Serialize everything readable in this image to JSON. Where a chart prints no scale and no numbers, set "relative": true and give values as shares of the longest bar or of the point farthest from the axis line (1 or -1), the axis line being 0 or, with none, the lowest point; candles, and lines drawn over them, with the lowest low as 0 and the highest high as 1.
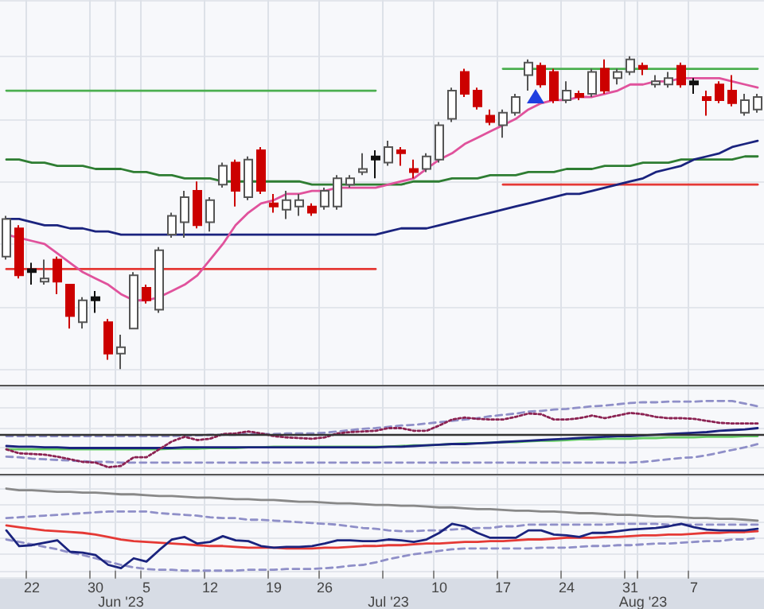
{
  "chart_data": [
    {
      "type": "candlestick",
      "relative": true,
      "grid": true,
      "tick_labels": false,
      "marker": "none",
      "categories": [
        null,
        null,
        null,
        null,
        null,
        null,
        null,
        null,
        null,
        null,
        null,
        null,
        null,
        null,
        null,
        null,
        null,
        null,
        null,
        null,
        null,
        null,
        null,
        null,
        null,
        null,
        null,
        null,
        null,
        null,
        null,
        null,
        null,
        null,
        null,
        null,
        null,
        null,
        null,
        null,
        null,
        null,
        null,
        null,
        null,
        null,
        null,
        null,
        null,
        null,
        null,
        null,
        null,
        null,
        null,
        null,
        null,
        null,
        null,
        null
      ],
      "ohlc": [
        [
          0.36,
          0.49,
          0.35,
          0.48
        ],
        [
          0.45,
          0.46,
          0.29,
          0.3
        ],
        [
          0.32,
          0.34,
          0.27,
          0.31
        ],
        [
          0.28,
          0.35,
          0.27,
          0.29
        ],
        [
          0.35,
          0.36,
          0.24,
          0.28
        ],
        [
          0.27,
          0.27,
          0.13,
          0.17
        ],
        [
          0.15,
          0.23,
          0.13,
          0.22
        ],
        [
          0.23,
          0.25,
          0.18,
          0.22
        ],
        [
          0.15,
          0.16,
          0.03,
          0.05
        ],
        [
          0.05,
          0.11,
          0,
          0.07
        ],
        [
          0.13,
          0.31,
          0.13,
          0.3
        ],
        [
          0.26,
          0.27,
          0.21,
          0.22
        ],
        [
          0.19,
          0.39,
          0.18,
          0.38
        ],
        [
          0.43,
          0.5,
          0.42,
          0.49
        ],
        [
          0.47,
          0.57,
          0.42,
          0.55
        ],
        [
          0.57,
          0.6,
          0.45,
          0.46
        ],
        [
          0.47,
          0.55,
          0.44,
          0.54
        ],
        [
          0.59,
          0.66,
          0.58,
          0.65
        ],
        [
          0.66,
          0.67,
          0.52,
          0.57
        ],
        [
          0.55,
          0.68,
          0.54,
          0.67
        ],
        [
          0.7,
          0.71,
          0.56,
          0.57
        ],
        [
          0.53,
          0.56,
          0.5,
          0.52
        ],
        [
          0.51,
          0.57,
          0.48,
          0.54
        ],
        [
          0.52,
          0.56,
          0.49,
          0.54
        ],
        [
          0.52,
          0.53,
          0.49,
          0.5
        ],
        [
          0.52,
          0.58,
          0.51,
          0.57
        ],
        [
          0.52,
          0.62,
          0.51,
          0.61
        ],
        [
          0.59,
          0.62,
          0.58,
          0.61
        ],
        [
          0.63,
          0.69,
          0.62,
          0.64
        ],
        [
          0.68,
          0.7,
          0.61,
          0.67
        ],
        [
          0.66,
          0.73,
          0.65,
          0.71
        ],
        [
          0.7,
          0.71,
          0.65,
          0.69
        ],
        [
          0.64,
          0.67,
          0.61,
          0.63
        ],
        [
          0.64,
          0.69,
          0.63,
          0.68
        ],
        [
          0.67,
          0.79,
          0.66,
          0.78
        ],
        [
          0.8,
          0.9,
          0.79,
          0.89
        ],
        [
          0.95,
          0.96,
          0.87,
          0.88
        ],
        [
          0.89,
          0.9,
          0.83,
          0.84
        ],
        [
          0.81,
          0.83,
          0.78,
          0.79
        ],
        [
          0.78,
          0.83,
          0.74,
          0.82
        ],
        [
          0.82,
          0.88,
          0.81,
          0.87
        ],
        [
          0.94,
          0.99,
          0.89,
          0.98
        ],
        [
          0.97,
          0.98,
          0.9,
          0.91
        ],
        [
          0.95,
          0.96,
          0.85,
          0.86
        ],
        [
          0.86,
          0.92,
          0.85,
          0.89
        ],
        [
          0.88,
          0.89,
          0.86,
          0.87
        ],
        [
          0.88,
          0.96,
          0.87,
          0.95
        ],
        [
          0.96,
          0.99,
          0.88,
          0.89
        ],
        [
          0.93,
          0.96,
          0.91,
          0.95
        ],
        [
          0.95,
          1,
          0.94,
          0.99
        ],
        [
          0.97,
          0.98,
          0.94,
          0.96
        ],
        [
          0.91,
          0.94,
          0.9,
          0.92
        ],
        [
          0.91,
          0.95,
          0.9,
          0.93
        ],
        [
          0.97,
          0.98,
          0.9,
          0.91
        ],
        [
          0.92,
          0.93,
          0.88,
          0.91
        ],
        [
          0.87,
          0.89,
          0.81,
          0.86
        ],
        [
          0.91,
          0.92,
          0.85,
          0.86
        ],
        [
          0.89,
          0.94,
          0.84,
          0.85
        ],
        [
          0.82,
          0.88,
          0.81,
          0.86
        ],
        [
          0.83,
          0.88,
          0.82,
          0.87
        ]
      ],
      "colors": [
        "#ffffff",
        "#cc0000",
        "#111111",
        "#ffffff",
        "#cc0000",
        "#cc0000",
        "#ffffff",
        "#111111",
        "#cc0000",
        "#ffffff",
        "#ffffff",
        "#cc0000",
        "#ffffff",
        "#ffffff",
        "#ffffff",
        "#cc0000",
        "#ffffff",
        "#ffffff",
        "#cc0000",
        "#ffffff",
        "#cc0000",
        "#cc0000",
        "#ffffff",
        "#ffffff",
        "#cc0000",
        "#ffffff",
        "#ffffff",
        "#ffffff",
        "#ffffff",
        "#111111",
        "#ffffff",
        "#cc0000",
        "#cc0000",
        "#ffffff",
        "#ffffff",
        "#ffffff",
        "#cc0000",
        "#cc0000",
        "#cc0000",
        "#ffffff",
        "#ffffff",
        "#ffffff",
        "#cc0000",
        "#cc0000",
        "#ffffff",
        "#cc0000",
        "#ffffff",
        "#cc0000",
        "#ffffff",
        "#ffffff",
        "#cc0000",
        "#ffffff",
        "#ffffff",
        "#cc0000",
        "#111111",
        "#cc0000",
        "#cc0000",
        "#cc0000",
        "#ffffff",
        "#ffffff"
      ],
      "series": [
        {
          "type": "line",
          "color": "#4caf50",
          "values": [
            0.89,
            0.89,
            0.89,
            0.89,
            0.89,
            0.89,
            0.89,
            0.89,
            0.89,
            0.89,
            0.89,
            0.89,
            0.89,
            0.89,
            0.89,
            0.89,
            0.89,
            0.89,
            0.89,
            0.89,
            0.89,
            0.89,
            0.89,
            0.89,
            0.89,
            0.89,
            0.89,
            0.89,
            0.89,
            0.89,
            null,
            null,
            null,
            null,
            null,
            null,
            null,
            null,
            null,
            null,
            null,
            null,
            null,
            null,
            null,
            null,
            null,
            null,
            null,
            null,
            null,
            null,
            null,
            null,
            null,
            null,
            null,
            null,
            null,
            null
          ]
        },
        {
          "type": "line",
          "color": "#e53935",
          "values": [
            0.32,
            0.32,
            0.32,
            0.32,
            0.32,
            0.32,
            0.32,
            0.32,
            0.32,
            0.32,
            0.32,
            0.32,
            0.32,
            0.32,
            0.32,
            0.32,
            0.32,
            0.32,
            0.32,
            0.32,
            0.32,
            0.32,
            0.32,
            0.32,
            0.32,
            0.32,
            0.32,
            0.32,
            0.32,
            0.32,
            null,
            null,
            null,
            null,
            null,
            null,
            null,
            null,
            null,
            null,
            null,
            null,
            null,
            null,
            null,
            null,
            null,
            null,
            null,
            null,
            null,
            null,
            null,
            null,
            null,
            null,
            null,
            null,
            null,
            null
          ]
        },
        {
          "type": "line",
          "color": "#4caf50",
          "values": [
            null,
            null,
            null,
            null,
            null,
            null,
            null,
            null,
            null,
            null,
            null,
            null,
            null,
            null,
            null,
            null,
            null,
            null,
            null,
            null,
            null,
            null,
            null,
            null,
            null,
            null,
            null,
            null,
            null,
            null,
            null,
            null,
            null,
            null,
            null,
            null,
            null,
            null,
            null,
            0.96,
            0.96,
            0.96,
            0.96,
            0.96,
            0.96,
            0.96,
            0.96,
            0.96,
            0.96,
            0.96,
            0.96,
            0.96,
            0.96,
            0.96,
            0.96,
            0.96,
            0.96,
            0.96,
            0.96,
            0.96
          ]
        },
        {
          "type": "line",
          "color": "#e53935",
          "values": [
            null,
            null,
            null,
            null,
            null,
            null,
            null,
            null,
            null,
            null,
            null,
            null,
            null,
            null,
            null,
            null,
            null,
            null,
            null,
            null,
            null,
            null,
            null,
            null,
            null,
            null,
            null,
            null,
            null,
            null,
            null,
            null,
            null,
            null,
            null,
            null,
            null,
            null,
            null,
            0.59,
            0.59,
            0.59,
            0.59,
            0.59,
            0.59,
            0.59,
            0.59,
            0.59,
            0.59,
            0.59,
            0.59,
            0.59,
            0.59,
            0.59,
            0.59,
            0.59,
            0.59,
            0.59,
            0.59,
            0.59
          ]
        },
        {
          "type": "line",
          "color": "#2e7d32",
          "values": [
            0.67,
            0.67,
            0.66,
            0.66,
            0.65,
            0.65,
            0.65,
            0.64,
            0.64,
            0.64,
            0.63,
            0.63,
            0.62,
            0.62,
            0.61,
            0.61,
            0.61,
            0.6,
            0.6,
            0.6,
            0.6,
            0.6,
            0.6,
            0.6,
            0.59,
            0.59,
            0.59,
            0.59,
            0.59,
            0.59,
            0.59,
            0.59,
            0.6,
            0.6,
            0.6,
            0.61,
            0.61,
            0.61,
            0.62,
            0.62,
            0.62,
            0.63,
            0.63,
            0.63,
            0.64,
            0.64,
            0.64,
            0.65,
            0.65,
            0.65,
            0.66,
            0.66,
            0.66,
            0.67,
            0.67,
            0.67,
            0.67,
            0.67,
            0.68,
            0.68
          ]
        },
        {
          "type": "line",
          "color": "#1a237e",
          "values": [
            0.48,
            0.48,
            0.47,
            0.46,
            0.46,
            0.45,
            0.45,
            0.44,
            0.44,
            0.43,
            0.43,
            0.43,
            0.43,
            0.43,
            0.43,
            0.43,
            0.43,
            0.43,
            0.43,
            0.43,
            0.43,
            0.43,
            0.43,
            0.43,
            0.43,
            0.43,
            0.43,
            0.43,
            0.43,
            0.43,
            0.44,
            0.45,
            0.45,
            0.45,
            0.46,
            0.47,
            0.48,
            0.49,
            0.5,
            0.51,
            0.52,
            0.53,
            0.54,
            0.55,
            0.56,
            0.56,
            0.57,
            0.58,
            0.59,
            0.6,
            0.61,
            0.63,
            0.64,
            0.65,
            0.67,
            0.68,
            0.69,
            0.71,
            0.72,
            0.73
          ]
        },
        {
          "type": "line",
          "color": "#e0529c",
          "values": [
            0.43,
            0.42,
            0.41,
            0.4,
            0.37,
            0.34,
            0.31,
            0.29,
            0.27,
            0.24,
            0.22,
            0.22,
            0.23,
            0.25,
            0.27,
            0.3,
            0.35,
            0.4,
            0.46,
            0.5,
            0.53,
            0.54,
            0.56,
            0.56,
            0.57,
            0.57,
            0.58,
            0.58,
            0.58,
            0.58,
            0.59,
            0.6,
            0.61,
            0.64,
            0.67,
            0.69,
            0.72,
            0.74,
            0.76,
            0.78,
            0.8,
            0.83,
            0.85,
            0.86,
            0.86,
            0.87,
            0.87,
            0.88,
            0.89,
            0.91,
            0.91,
            0.92,
            0.92,
            0.93,
            0.93,
            0.93,
            0.93,
            0.92,
            0.91,
            0.9
          ]
        }
      ]
    },
    {
      "type": "line",
      "relative": true,
      "grid": true,
      "tick_labels": false,
      "marker": "none",
      "categories": [
        null,
        null,
        null,
        null,
        null,
        null,
        null,
        null,
        null,
        null,
        null,
        null,
        null,
        null,
        null,
        null,
        null,
        null,
        null,
        null,
        null,
        null,
        null,
        null,
        null,
        null,
        null,
        null,
        null,
        null,
        null,
        null,
        null,
        null,
        null,
        null,
        null,
        null,
        null,
        null,
        null,
        null,
        null,
        null,
        null,
        null,
        null,
        null,
        null,
        null,
        null,
        null,
        null,
        null,
        null,
        null,
        null,
        null,
        null,
        null
      ],
      "ref_lines": [
        {
          "axis": "y",
          "value": 0.5,
          "color": "#333333"
        }
      ],
      "series": [
        {
          "color": "#8f8fc8",
          "line_style": "dashed",
          "values": [
            0.47,
            0.47,
            0.47,
            0.47,
            0.47,
            0.47,
            0.47,
            0.47,
            0.47,
            0.47,
            0.47,
            0.47,
            0.47,
            0.47,
            0.48,
            0.48,
            0.49,
            0.49,
            0.49,
            0.5,
            0.5,
            0.5,
            0.51,
            0.51,
            0.51,
            0.52,
            0.54,
            0.56,
            0.58,
            0.59,
            0.61,
            0.63,
            0.64,
            0.66,
            0.68,
            0.7,
            0.72,
            0.74,
            0.77,
            0.79,
            0.81,
            0.84,
            0.85,
            0.87,
            0.88,
            0.9,
            0.92,
            0.93,
            0.95,
            0.97,
            0.98,
            0.98,
            0.99,
            0.99,
            0.99,
            1.0,
            1.0,
            1.0,
            0.96,
            0.92
          ]
        },
        {
          "color": "#8f8fc8",
          "line_style": "dashed",
          "values": [
            0.16,
            0.15,
            0.13,
            0.12,
            0.11,
            0.1,
            0.09,
            0.08,
            0.08,
            0.07,
            0.07,
            0.07,
            0.07,
            0.07,
            0.07,
            0.07,
            0.07,
            0.07,
            0.07,
            0.07,
            0.07,
            0.07,
            0.07,
            0.07,
            0.07,
            0.07,
            0.07,
            0.07,
            0.07,
            0.07,
            0.07,
            0.07,
            0.07,
            0.07,
            0.07,
            0.07,
            0.07,
            0.07,
            0.07,
            0.07,
            0.07,
            0.07,
            0.07,
            0.07,
            0.07,
            0.07,
            0.07,
            0.07,
            0.07,
            0.07,
            0.08,
            0.1,
            0.12,
            0.14,
            0.15,
            0.18,
            0.22,
            0.26,
            0.3,
            0.35
          ]
        },
        {
          "color": "#66cc66",
          "values": [
            0.27,
            0.27,
            0.27,
            0.27,
            0.27,
            0.27,
            0.27,
            0.27,
            0.27,
            0.27,
            0.27,
            0.27,
            0.27,
            0.28,
            0.28,
            0.28,
            0.29,
            0.29,
            0.29,
            0.3,
            0.3,
            0.31,
            0.31,
            0.31,
            0.31,
            0.31,
            0.31,
            0.31,
            0.31,
            0.31,
            0.31,
            0.32,
            0.33,
            0.33,
            0.34,
            0.35,
            0.36,
            0.36,
            0.37,
            0.38,
            0.38,
            0.39,
            0.4,
            0.4,
            0.41,
            0.42,
            0.42,
            0.43,
            0.43,
            0.43,
            0.44,
            0.44,
            0.45,
            0.45,
            0.45,
            0.46,
            0.46,
            0.46,
            0.47,
            0.47
          ]
        },
        {
          "color": "#1a237e",
          "values": [
            0.32,
            0.31,
            0.31,
            0.3,
            0.3,
            0.29,
            0.29,
            0.29,
            0.29,
            0.29,
            0.29,
            0.29,
            0.29,
            0.29,
            0.3,
            0.3,
            0.3,
            0.3,
            0.3,
            0.3,
            0.3,
            0.3,
            0.3,
            0.3,
            0.3,
            0.3,
            0.3,
            0.3,
            0.3,
            0.3,
            0.31,
            0.31,
            0.32,
            0.33,
            0.34,
            0.35,
            0.35,
            0.36,
            0.37,
            0.38,
            0.39,
            0.4,
            0.41,
            0.42,
            0.43,
            0.44,
            0.45,
            0.46,
            0.47,
            0.47,
            0.48,
            0.49,
            0.5,
            0.51,
            0.52,
            0.53,
            0.55,
            0.56,
            0.57,
            0.59
          ]
        },
        {
          "color": "#8b2252",
          "line_style": "dotted",
          "values": [
            0.27,
            0.21,
            0.2,
            0.19,
            0.16,
            0.12,
            0.08,
            0.07,
            0,
            0.02,
            0.15,
            0.15,
            0.27,
            0.39,
            0.46,
            0.41,
            0.43,
            0.5,
            0.51,
            0.54,
            0.51,
            0.47,
            0.45,
            0.44,
            0.43,
            0.45,
            0.51,
            0.53,
            0.54,
            0.55,
            0.59,
            0.59,
            0.55,
            0.55,
            0.63,
            0.72,
            0.75,
            0.73,
            0.72,
            0.72,
            0.76,
            0.81,
            0.8,
            0.72,
            0.72,
            0.74,
            0.78,
            0.74,
            0.78,
            0.82,
            0.8,
            0.76,
            0.74,
            0.74,
            0.73,
            0.7,
            0.67,
            0.66,
            0.66,
            0.66
          ]
        }
      ]
    },
    {
      "type": "line",
      "relative": true,
      "grid": true,
      "tick_labels": "x",
      "marker": "none",
      "categories": [
        null,
        null,
        "22",
        null,
        null,
        null,
        null,
        "30",
        null,
        "Jun '23",
        null,
        "5",
        null,
        null,
        null,
        null,
        "12",
        null,
        null,
        null,
        null,
        "19",
        null,
        null,
        null,
        "26",
        null,
        null,
        null,
        null,
        "Jul '23",
        null,
        null,
        null,
        "10",
        null,
        null,
        null,
        null,
        "17",
        null,
        null,
        null,
        null,
        "24",
        null,
        null,
        null,
        null,
        "31",
        "Aug '23",
        null,
        null,
        null,
        "7",
        null,
        null,
        null,
        null,
        null
      ],
      "series": [
        {
          "color": "#888888",
          "values": [
            1.0,
            0.98,
            0.98,
            0.97,
            0.96,
            0.96,
            0.95,
            0.95,
            0.94,
            0.93,
            0.93,
            0.92,
            0.91,
            0.91,
            0.9,
            0.89,
            0.89,
            0.88,
            0.87,
            0.87,
            0.86,
            0.86,
            0.85,
            0.84,
            0.84,
            0.83,
            0.82,
            0.82,
            0.81,
            0.8,
            0.8,
            0.79,
            0.79,
            0.78,
            0.77,
            0.77,
            0.76,
            0.75,
            0.75,
            0.74,
            0.73,
            0.73,
            0.72,
            0.72,
            0.71,
            0.7,
            0.7,
            0.69,
            0.68,
            0.68,
            0.67,
            0.66,
            0.66,
            0.65,
            0.64,
            0.64,
            0.63,
            0.63,
            0.62,
            0.61
          ]
        },
        {
          "color": "#8f8fc8",
          "line_style": "dashed",
          "values": [
            0.64,
            0.65,
            0.66,
            0.67,
            0.68,
            0.69,
            0.7,
            0.71,
            0.72,
            0.72,
            0.72,
            0.72,
            0.7,
            0.69,
            0.68,
            0.67,
            0.65,
            0.64,
            0.64,
            0.62,
            0.62,
            0.61,
            0.6,
            0.59,
            0.58,
            0.57,
            0.56,
            0.54,
            0.52,
            0.51,
            0.49,
            0.48,
            0.48,
            0.49,
            0.49,
            0.5,
            0.51,
            0.52,
            0.52,
            0.54,
            0.54,
            0.56,
            0.56,
            0.56,
            0.56,
            0.56,
            0.56,
            0.56,
            0.57,
            0.57,
            0.57,
            0.57,
            0.56,
            0.56,
            0.56,
            0.56,
            0.56,
            0.56,
            0.56,
            0.56
          ]
        },
        {
          "color": "#8f8fc8",
          "line_style": "dashed",
          "values": [
            0.38,
            0.35,
            0.32,
            0.29,
            0.26,
            0.22,
            0.19,
            0.15,
            0.11,
            0.07,
            0.04,
            0.02,
            0.01,
            0.01,
            0,
            0,
            0,
            0,
            0,
            0.01,
            0.01,
            0.01,
            0.02,
            0.02,
            0.02,
            0.03,
            0.04,
            0.06,
            0.07,
            0.1,
            0.14,
            0.17,
            0.2,
            0.22,
            0.24,
            0.26,
            0.27,
            0.27,
            0.27,
            0.27,
            0.27,
            0.27,
            0.28,
            0.28,
            0.28,
            0.29,
            0.3,
            0.3,
            0.31,
            0.31,
            0.32,
            0.33,
            0.33,
            0.34,
            0.35,
            0.36,
            0.36,
            0.38,
            0.38,
            0.4
          ]
        },
        {
          "color": "#e53935",
          "values": [
            0.55,
            0.53,
            0.51,
            0.49,
            0.48,
            0.47,
            0.46,
            0.44,
            0.41,
            0.38,
            0.36,
            0.35,
            0.34,
            0.33,
            0.32,
            0.31,
            0.3,
            0.3,
            0.29,
            0.28,
            0.28,
            0.28,
            0.27,
            0.27,
            0.27,
            0.28,
            0.28,
            0.29,
            0.3,
            0.3,
            0.31,
            0.31,
            0.32,
            0.33,
            0.33,
            0.34,
            0.35,
            0.35,
            0.36,
            0.36,
            0.37,
            0.38,
            0.38,
            0.39,
            0.4,
            0.4,
            0.4,
            0.41,
            0.41,
            0.42,
            0.43,
            0.43,
            0.44,
            0.44,
            0.45,
            0.46,
            0.46,
            0.47,
            0.47,
            0.48
          ]
        },
        {
          "color": "#1a237e",
          "values": [
            0.49,
            0.3,
            0.31,
            0.34,
            0.37,
            0.23,
            0.22,
            0.19,
            0.07,
            0.03,
            0.15,
            0.11,
            0.25,
            0.38,
            0.41,
            0.33,
            0.35,
            0.42,
            0.37,
            0.36,
            0.3,
            0.28,
            0.29,
            0.29,
            0.3,
            0.33,
            0.37,
            0.37,
            0.36,
            0.36,
            0.38,
            0.37,
            0.35,
            0.38,
            0.46,
            0.57,
            0.54,
            0.46,
            0.4,
            0.4,
            0.4,
            0.49,
            0.49,
            0.44,
            0.43,
            0.41,
            0.46,
            0.46,
            0.48,
            0.5,
            0.51,
            0.52,
            0.54,
            0.57,
            0.53,
            0.5,
            0.49,
            0.49,
            0.49,
            0.51
          ]
        }
      ]
    }
  ]
}
